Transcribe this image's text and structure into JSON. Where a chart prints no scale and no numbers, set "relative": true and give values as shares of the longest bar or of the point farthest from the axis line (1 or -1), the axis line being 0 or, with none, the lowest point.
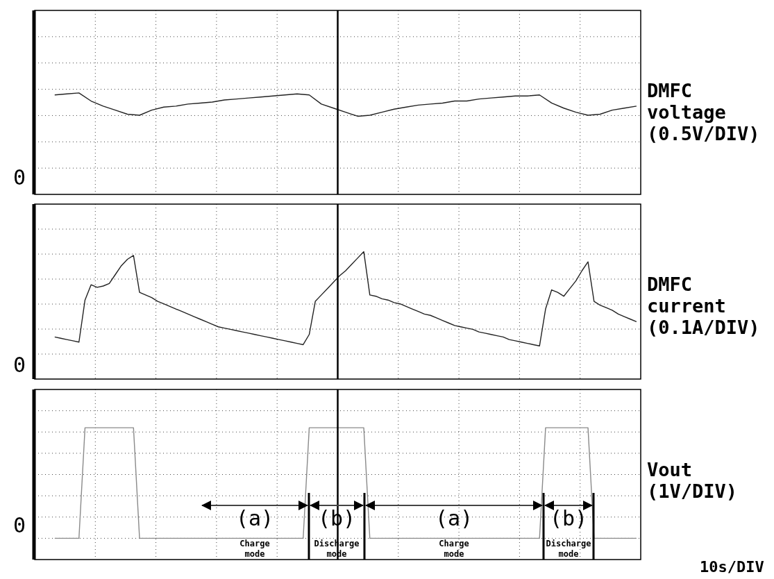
{
  "chart_data": [
    {
      "type": "line",
      "relative": true,
      "ylabel": "DMFC voltage (0.5V/DIV)",
      "grid": true,
      "marker": "none",
      "line_style": "solid",
      "categories": [
        null,
        null,
        null,
        null,
        null,
        null,
        null,
        null,
        null,
        null,
        null,
        null,
        null,
        null,
        null,
        null,
        null,
        null,
        null,
        null,
        null,
        null,
        null,
        null,
        null,
        null,
        null,
        null,
        null,
        null,
        null,
        null,
        null,
        null,
        null,
        null,
        null,
        null,
        null,
        null,
        null,
        null,
        null,
        null,
        null,
        null,
        null,
        null,
        null
      ],
      "annotations": [
        "0"
      ],
      "series": [
        {
          "color": "#222222",
          "values": [
            0.98,
            0.99,
            1,
            0.92,
            0.87,
            0.83,
            0.79,
            0.78,
            0.83,
            0.86,
            0.87,
            0.89,
            0.9,
            0.91,
            0.93,
            0.94,
            0.95,
            0.96,
            0.97,
            0.98,
            0.99,
            0.98,
            0.89,
            0.85,
            0.81,
            0.77,
            0.78,
            0.81,
            0.84,
            0.86,
            0.88,
            0.89,
            0.9,
            0.92,
            0.92,
            0.94,
            0.95,
            0.96,
            0.97,
            0.97,
            0.98,
            0.9,
            0.85,
            0.81,
            0.78,
            0.79,
            0.83,
            0.85,
            0.87
          ]
        }
      ]
    },
    {
      "type": "line",
      "relative": true,
      "ylabel": "DMFC current (0.1A/DIV)",
      "grid": true,
      "marker": "none",
      "line_style": "solid",
      "categories": [
        null,
        null,
        null,
        null,
        null,
        null,
        null,
        null,
        null,
        null,
        null,
        null,
        null,
        null,
        null,
        null,
        null,
        null,
        null,
        null,
        null,
        null,
        null,
        null,
        null,
        null,
        null,
        null,
        null,
        null,
        null,
        null,
        null,
        null,
        null,
        null,
        null,
        null,
        null,
        null,
        null,
        null,
        null,
        null,
        null,
        null,
        null,
        null,
        null,
        null,
        null,
        null,
        null,
        null,
        null,
        null,
        null,
        null,
        null,
        null,
        null,
        null,
        null,
        null,
        null,
        null,
        null,
        null,
        null,
        null,
        null,
        null,
        null,
        null,
        null,
        null,
        null,
        null,
        null,
        null,
        null,
        null,
        null,
        null,
        null,
        null,
        null,
        null,
        null,
        null,
        null,
        null,
        null,
        null,
        null,
        null,
        null
      ],
      "annotations": [
        "0"
      ],
      "series": [
        {
          "color": "#222222",
          "values": [
            0.33,
            0.32,
            0.31,
            0.3,
            0.29,
            0.62,
            0.74,
            0.72,
            0.73,
            0.75,
            0.82,
            0.89,
            0.94,
            0.97,
            0.68,
            0.66,
            0.64,
            0.61,
            0.59,
            0.57,
            0.55,
            0.53,
            0.51,
            0.49,
            0.47,
            0.45,
            0.43,
            0.41,
            0.4,
            0.39,
            0.38,
            0.37,
            0.36,
            0.35,
            0.34,
            0.33,
            0.32,
            0.31,
            0.3,
            0.29,
            0.28,
            0.27,
            0.35,
            0.61,
            0.66,
            0.71,
            0.76,
            0.81,
            0.85,
            0.9,
            0.95,
            1,
            0.66,
            0.65,
            0.63,
            0.62,
            0.6,
            0.59,
            0.57,
            0.55,
            0.53,
            0.51,
            0.5,
            0.48,
            0.46,
            0.44,
            0.42,
            0.41,
            0.4,
            0.39,
            0.37,
            0.36,
            0.35,
            0.34,
            0.33,
            0.31,
            0.3,
            0.29,
            0.28,
            0.27,
            0.26,
            0.55,
            0.7,
            0.68,
            0.65,
            0.71,
            0.77,
            0.85,
            0.92,
            0.61,
            0.58,
            0.56,
            0.54,
            0.51,
            0.49,
            0.47,
            0.45
          ]
        }
      ]
    },
    {
      "type": "line",
      "relative": true,
      "ylabel": "Vout (1V/DIV)",
      "xlabel": "10s/DIV",
      "grid": true,
      "marker": "none",
      "line_style": "solid",
      "categories": [
        null,
        null,
        null,
        null,
        null,
        null,
        null,
        null,
        null,
        null,
        null,
        null,
        null,
        null,
        null,
        null,
        null,
        null,
        null,
        null,
        null,
        null,
        null,
        null,
        null,
        null,
        null,
        null,
        null,
        null,
        null,
        null,
        null,
        null,
        null,
        null,
        null,
        null,
        null,
        null,
        null,
        null,
        null,
        null,
        null,
        null,
        null,
        null,
        null,
        null,
        null,
        null,
        null,
        null,
        null,
        null,
        null,
        null,
        null,
        null,
        null,
        null,
        null,
        null,
        null,
        null,
        null,
        null,
        null,
        null,
        null,
        null,
        null,
        null,
        null,
        null,
        null,
        null,
        null,
        null,
        null,
        null,
        null,
        null,
        null,
        null,
        null,
        null,
        null,
        null,
        null,
        null,
        null,
        null,
        null,
        null,
        null
      ],
      "annotations": [
        "0",
        "(a)",
        "Charge mode",
        "(b)",
        "Discharge mode",
        "(a)",
        "Charge mode",
        "(b)",
        "Discharge mode"
      ],
      "series": [
        {
          "color": "#8a8a8a",
          "values": [
            0,
            0,
            0,
            0,
            0,
            1,
            1,
            1,
            1,
            1,
            1,
            1,
            1,
            1,
            0,
            0,
            0,
            0,
            0,
            0,
            0,
            0,
            0,
            0,
            0,
            0,
            0,
            0,
            0,
            0,
            0,
            0,
            0,
            0,
            0,
            0,
            0,
            0,
            0,
            0,
            0,
            0,
            1,
            1,
            1,
            1,
            1,
            1,
            1,
            1,
            1,
            1,
            0,
            0,
            0,
            0,
            0,
            0,
            0,
            0,
            0,
            0,
            0,
            0,
            0,
            0,
            0,
            0,
            0,
            0,
            0,
            0,
            0,
            0,
            0,
            0,
            0,
            0,
            0,
            0,
            0,
            1,
            1,
            1,
            1,
            1,
            1,
            1,
            1,
            0,
            0,
            0,
            0,
            0,
            0,
            0,
            0
          ]
        }
      ]
    }
  ]
}
